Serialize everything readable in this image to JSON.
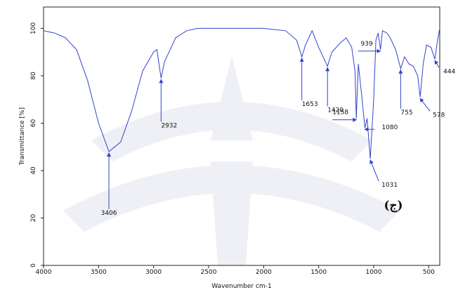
{
  "chart_data": {
    "type": "line",
    "x_label": "Wavenumber cm-1",
    "y_label": "Transmittance [%]",
    "panel_label": "(ج)",
    "xlim": [
      4000,
      400
    ],
    "ylim": [
      0,
      109
    ],
    "xticks": [
      4000,
      3500,
      3000,
      2500,
      2000,
      1500,
      1000,
      500
    ],
    "yticks": [
      0,
      20,
      40,
      60,
      80,
      100
    ],
    "color": "#3344cc",
    "x": [
      4000,
      3900,
      3800,
      3700,
      3600,
      3500,
      3406,
      3300,
      3200,
      3100,
      3000,
      2970,
      2932,
      2900,
      2850,
      2800,
      2700,
      2600,
      2400,
      2200,
      2000,
      1800,
      1700,
      1653,
      1620,
      1560,
      1500,
      1450,
      1420,
      1380,
      1300,
      1250,
      1200,
      1170,
      1158,
      1140,
      1110,
      1080,
      1060,
      1031,
      1000,
      980,
      960,
      939,
      920,
      880,
      850,
      800,
      755,
      720,
      680,
      640,
      600,
      578,
      550,
      520,
      480,
      444,
      420,
      400
    ],
    "values": [
      99,
      98,
      96,
      91,
      78,
      60,
      48,
      52,
      65,
      82,
      90,
      91,
      79,
      86,
      91,
      96,
      99,
      100,
      100,
      100,
      100,
      99,
      95,
      88,
      93,
      99,
      92,
      87,
      84,
      90,
      94,
      96,
      92,
      82,
      62,
      85,
      72,
      58,
      62,
      45,
      70,
      95,
      98,
      91,
      99,
      98,
      96,
      91,
      83,
      88,
      85,
      84,
      80,
      71,
      85,
      93,
      92,
      87,
      95,
      100
    ],
    "peak_labels": [
      3406,
      2932,
      1653,
      1420,
      1158,
      1080,
      1031,
      939,
      755,
      578,
      444
    ]
  }
}
